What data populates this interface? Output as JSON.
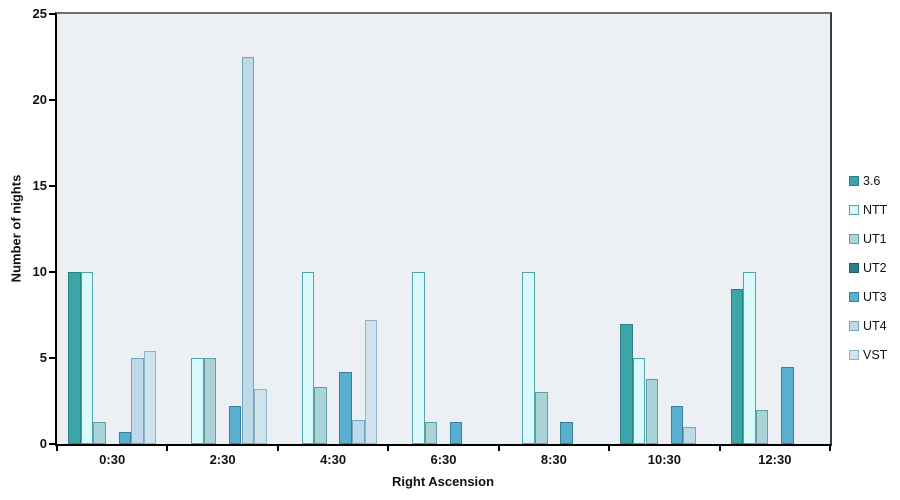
{
  "chart_data": {
    "type": "bar",
    "title": "",
    "xlabel": "Right Ascension",
    "ylabel": "Number of nights",
    "ylim": [
      0,
      25
    ],
    "yticks": [
      0,
      5,
      10,
      15,
      20,
      25
    ],
    "grid": false,
    "legend_position": "right",
    "categories": [
      "0:30",
      "2:30",
      "4:30",
      "6:30",
      "8:30",
      "10:30",
      "12:30"
    ],
    "series": [
      {
        "name": "3.6",
        "fill": "#3BA5A8",
        "border": "#2B8084",
        "values": [
          10,
          0,
          0,
          0,
          0,
          7,
          9
        ]
      },
      {
        "name": "NTT",
        "fill": "#D9FAFB",
        "border": "#54A3AA",
        "values": [
          10,
          5,
          10,
          10,
          10,
          5,
          10
        ]
      },
      {
        "name": "UT1",
        "fill": "#AAD4D8",
        "border": "#619FA6",
        "values": [
          1.3,
          5,
          3.3,
          1.3,
          3,
          3.8,
          2
        ]
      },
      {
        "name": "UT2",
        "fill": "#2F7E85",
        "border": "#1F5D64",
        "values": [
          0,
          0,
          0,
          0,
          0,
          0,
          0
        ]
      },
      {
        "name": "UT3",
        "fill": "#58AFCE",
        "border": "#3A7F9B",
        "values": [
          0.7,
          2.2,
          4.2,
          1.3,
          1.3,
          2.2,
          4.5
        ]
      },
      {
        "name": "UT4",
        "fill": "#BED9E7",
        "border": "#74A5BE",
        "values": [
          5,
          22.5,
          1.4,
          0,
          0,
          1,
          0
        ]
      },
      {
        "name": "VST",
        "fill": "#CFE2ED",
        "border": "#8EB4CA",
        "values": [
          5.4,
          3.2,
          7.2,
          0,
          0,
          0,
          0
        ]
      }
    ],
    "colors": {
      "plot_bg": "#ECEFF4",
      "axis": "#000000",
      "frame": "#6E6E6E"
    }
  }
}
